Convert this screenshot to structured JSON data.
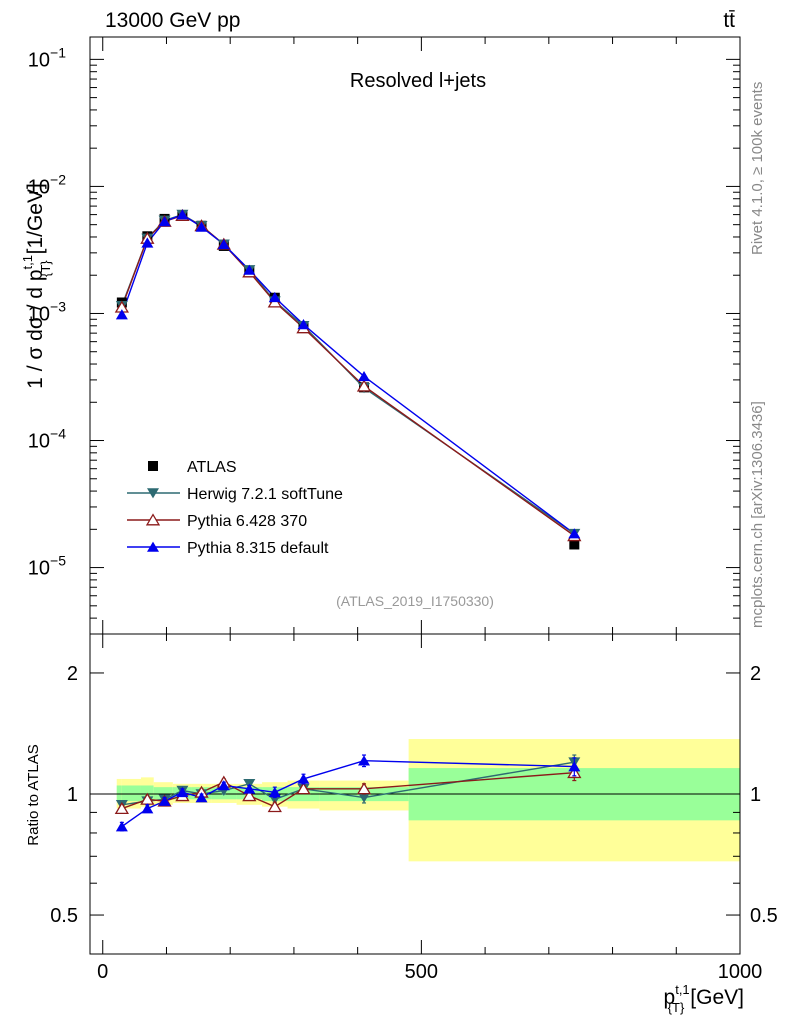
{
  "header": {
    "energy_label": "13000 GeV pp",
    "process_label": "tt̄"
  },
  "side_labels": {
    "rivet": "Rivet 4.1.0, ≥ 100k events",
    "mcplots": "mcplots.cern.ch [arXiv:1306.3436]"
  },
  "chart_data": [
    {
      "type": "scatter",
      "title": "Resolved l+jets",
      "watermark": "(ATLAS_2019_I1750330)",
      "ylabel": "1 / σ dσ / d p_T^{t,1} [1/GeV]",
      "ylabel_parts": {
        "main": "1 / σ dσ / d p",
        "sup": "t,1",
        "sub": "{T}",
        "unit": "[1/GeV]"
      },
      "yscale": "log",
      "ylim": [
        3e-06,
        0.15
      ],
      "xlim": [
        -20,
        1000
      ],
      "y_ticks": [
        {
          "value": 0.1,
          "label": "10",
          "exp": "−1"
        },
        {
          "value": 0.01,
          "label": "10",
          "exp": "−2"
        },
        {
          "value": 0.001,
          "label": "10",
          "exp": "−3"
        },
        {
          "value": 0.0001,
          "label": "10",
          "exp": "−4"
        },
        {
          "value": 1e-05,
          "label": "10",
          "exp": "−5"
        }
      ],
      "x": [
        30,
        70,
        97,
        125,
        155,
        190,
        230,
        270,
        315,
        410,
        740
      ],
      "legend": {
        "position": "bottom-left",
        "entries": [
          "ATLAS",
          "Herwig 7.2.1 softTune",
          "Pythia 6.428 370",
          "Pythia 8.315 default"
        ]
      },
      "series": [
        {
          "name": "ATLAS",
          "color": "#000000",
          "marker": "square",
          "values": [
            0.00122,
            0.00405,
            0.00555,
            0.0059,
            0.0049,
            0.0034,
            0.00215,
            0.00133,
            0.000775,
            0.000262,
            1.52e-05
          ]
        },
        {
          "name": "Herwig 7.2.1 softTune",
          "color": "#2d6a72",
          "marker": "triangle-down",
          "values": [
            0.00115,
            0.0039,
            0.0054,
            0.006,
            0.0049,
            0.0035,
            0.0022,
            0.00125,
            0.0008,
            0.00026,
            1.85e-05
          ]
        },
        {
          "name": "Pythia 6.428 370",
          "color": "#8b1a1a",
          "marker": "triangle-up-open",
          "values": [
            0.00112,
            0.0039,
            0.0053,
            0.0059,
            0.0049,
            0.0035,
            0.00212,
            0.00123,
            0.00077,
            0.000268,
            1.78e-05
          ]
        },
        {
          "name": "Pythia 8.315 default",
          "color": "#0000ee",
          "marker": "triangle-up",
          "values": [
            0.00098,
            0.0036,
            0.0053,
            0.006,
            0.0048,
            0.0035,
            0.0022,
            0.00134,
            0.00082,
            0.00032,
            1.85e-05
          ]
        }
      ]
    },
    {
      "type": "scatter",
      "ylabel": "Ratio to ATLAS",
      "xlabel": "p_T^{t,1} [GeV]",
      "xlabel_parts": {
        "main": "p",
        "sup": "t,1",
        "sub": "{T}",
        "unit": "[GeV]"
      },
      "yscale": "log",
      "ylim": [
        0.4,
        2.5
      ],
      "xlim": [
        -20,
        1000
      ],
      "y_ticks": [
        {
          "value": 0.5,
          "label": "0.5"
        },
        {
          "value": 1,
          "label": "1"
        },
        {
          "value": 2,
          "label": "2"
        }
      ],
      "x_ticks": [
        {
          "value": 0,
          "label": "0"
        },
        {
          "value": 500,
          "label": "500"
        },
        {
          "value": 1000,
          "label": "1000"
        }
      ],
      "uncertainty_bands": [
        {
          "x0": 0,
          "x1": 30,
          "inner": [
            0.96,
            1.05
          ],
          "outer": [
            0.92,
            1.09
          ]
        },
        {
          "x0": 30,
          "x1": 60,
          "inner": [
            0.96,
            1.05
          ],
          "outer": [
            0.92,
            1.09
          ]
        },
        {
          "x0": 60,
          "x1": 80,
          "inner": [
            0.96,
            1.05
          ],
          "outer": [
            0.93,
            1.1
          ]
        },
        {
          "x0": 80,
          "x1": 110,
          "inner": [
            0.97,
            1.04
          ],
          "outer": [
            0.94,
            1.07
          ]
        },
        {
          "x0": 110,
          "x1": 140,
          "inner": [
            0.97,
            1.04
          ],
          "outer": [
            0.95,
            1.06
          ]
        },
        {
          "x0": 140,
          "x1": 170,
          "inner": [
            0.97,
            1.04
          ],
          "outer": [
            0.95,
            1.06
          ]
        },
        {
          "x0": 170,
          "x1": 210,
          "inner": [
            0.97,
            1.04
          ],
          "outer": [
            0.95,
            1.06
          ]
        },
        {
          "x0": 210,
          "x1": 250,
          "inner": [
            0.97,
            1.04
          ],
          "outer": [
            0.94,
            1.06
          ]
        },
        {
          "x0": 250,
          "x1": 290,
          "inner": [
            0.96,
            1.04
          ],
          "outer": [
            0.93,
            1.07
          ]
        },
        {
          "x0": 290,
          "x1": 340,
          "inner": [
            0.96,
            1.04
          ],
          "outer": [
            0.92,
            1.08
          ]
        },
        {
          "x0": 340,
          "x1": 480,
          "inner": [
            0.96,
            1.04
          ],
          "outer": [
            0.91,
            1.08
          ]
        },
        {
          "x0": 480,
          "x1": 1000,
          "inner": [
            0.86,
            1.16
          ],
          "outer": [
            0.68,
            1.37
          ]
        }
      ],
      "x": [
        30,
        70,
        97,
        125,
        155,
        190,
        230,
        270,
        315,
        410,
        740
      ],
      "series": [
        {
          "name": "Herwig 7.2.1 softTune",
          "color": "#2d6a72",
          "marker": "triangle-down",
          "values": [
            0.94,
            0.96,
            0.97,
            1.02,
            1.0,
            1.02,
            1.06,
            0.97,
            1.03,
            0.98,
            1.2
          ],
          "errors": [
            0.02,
            0.02,
            0.02,
            0.02,
            0.02,
            0.02,
            0.02,
            0.02,
            0.02,
            0.03,
            0.05
          ]
        },
        {
          "name": "Pythia 6.428 370",
          "color": "#8b1a1a",
          "marker": "triangle-up-open",
          "values": [
            0.92,
            0.97,
            0.96,
            0.99,
            1.01,
            1.07,
            0.99,
            0.93,
            1.03,
            1.03,
            1.13
          ],
          "errors": [
            0.02,
            0.02,
            0.02,
            0.02,
            0.02,
            0.02,
            0.02,
            0.02,
            0.02,
            0.03,
            0.05
          ]
        },
        {
          "name": "Pythia 8.315 default",
          "color": "#0000ee",
          "marker": "triangle-up",
          "values": [
            0.83,
            0.92,
            0.96,
            1.01,
            0.98,
            1.05,
            1.03,
            1.01,
            1.09,
            1.21,
            1.17
          ],
          "errors": [
            0.02,
            0.02,
            0.02,
            0.02,
            0.02,
            0.02,
            0.02,
            0.03,
            0.03,
            0.04,
            0.06
          ]
        }
      ]
    }
  ]
}
